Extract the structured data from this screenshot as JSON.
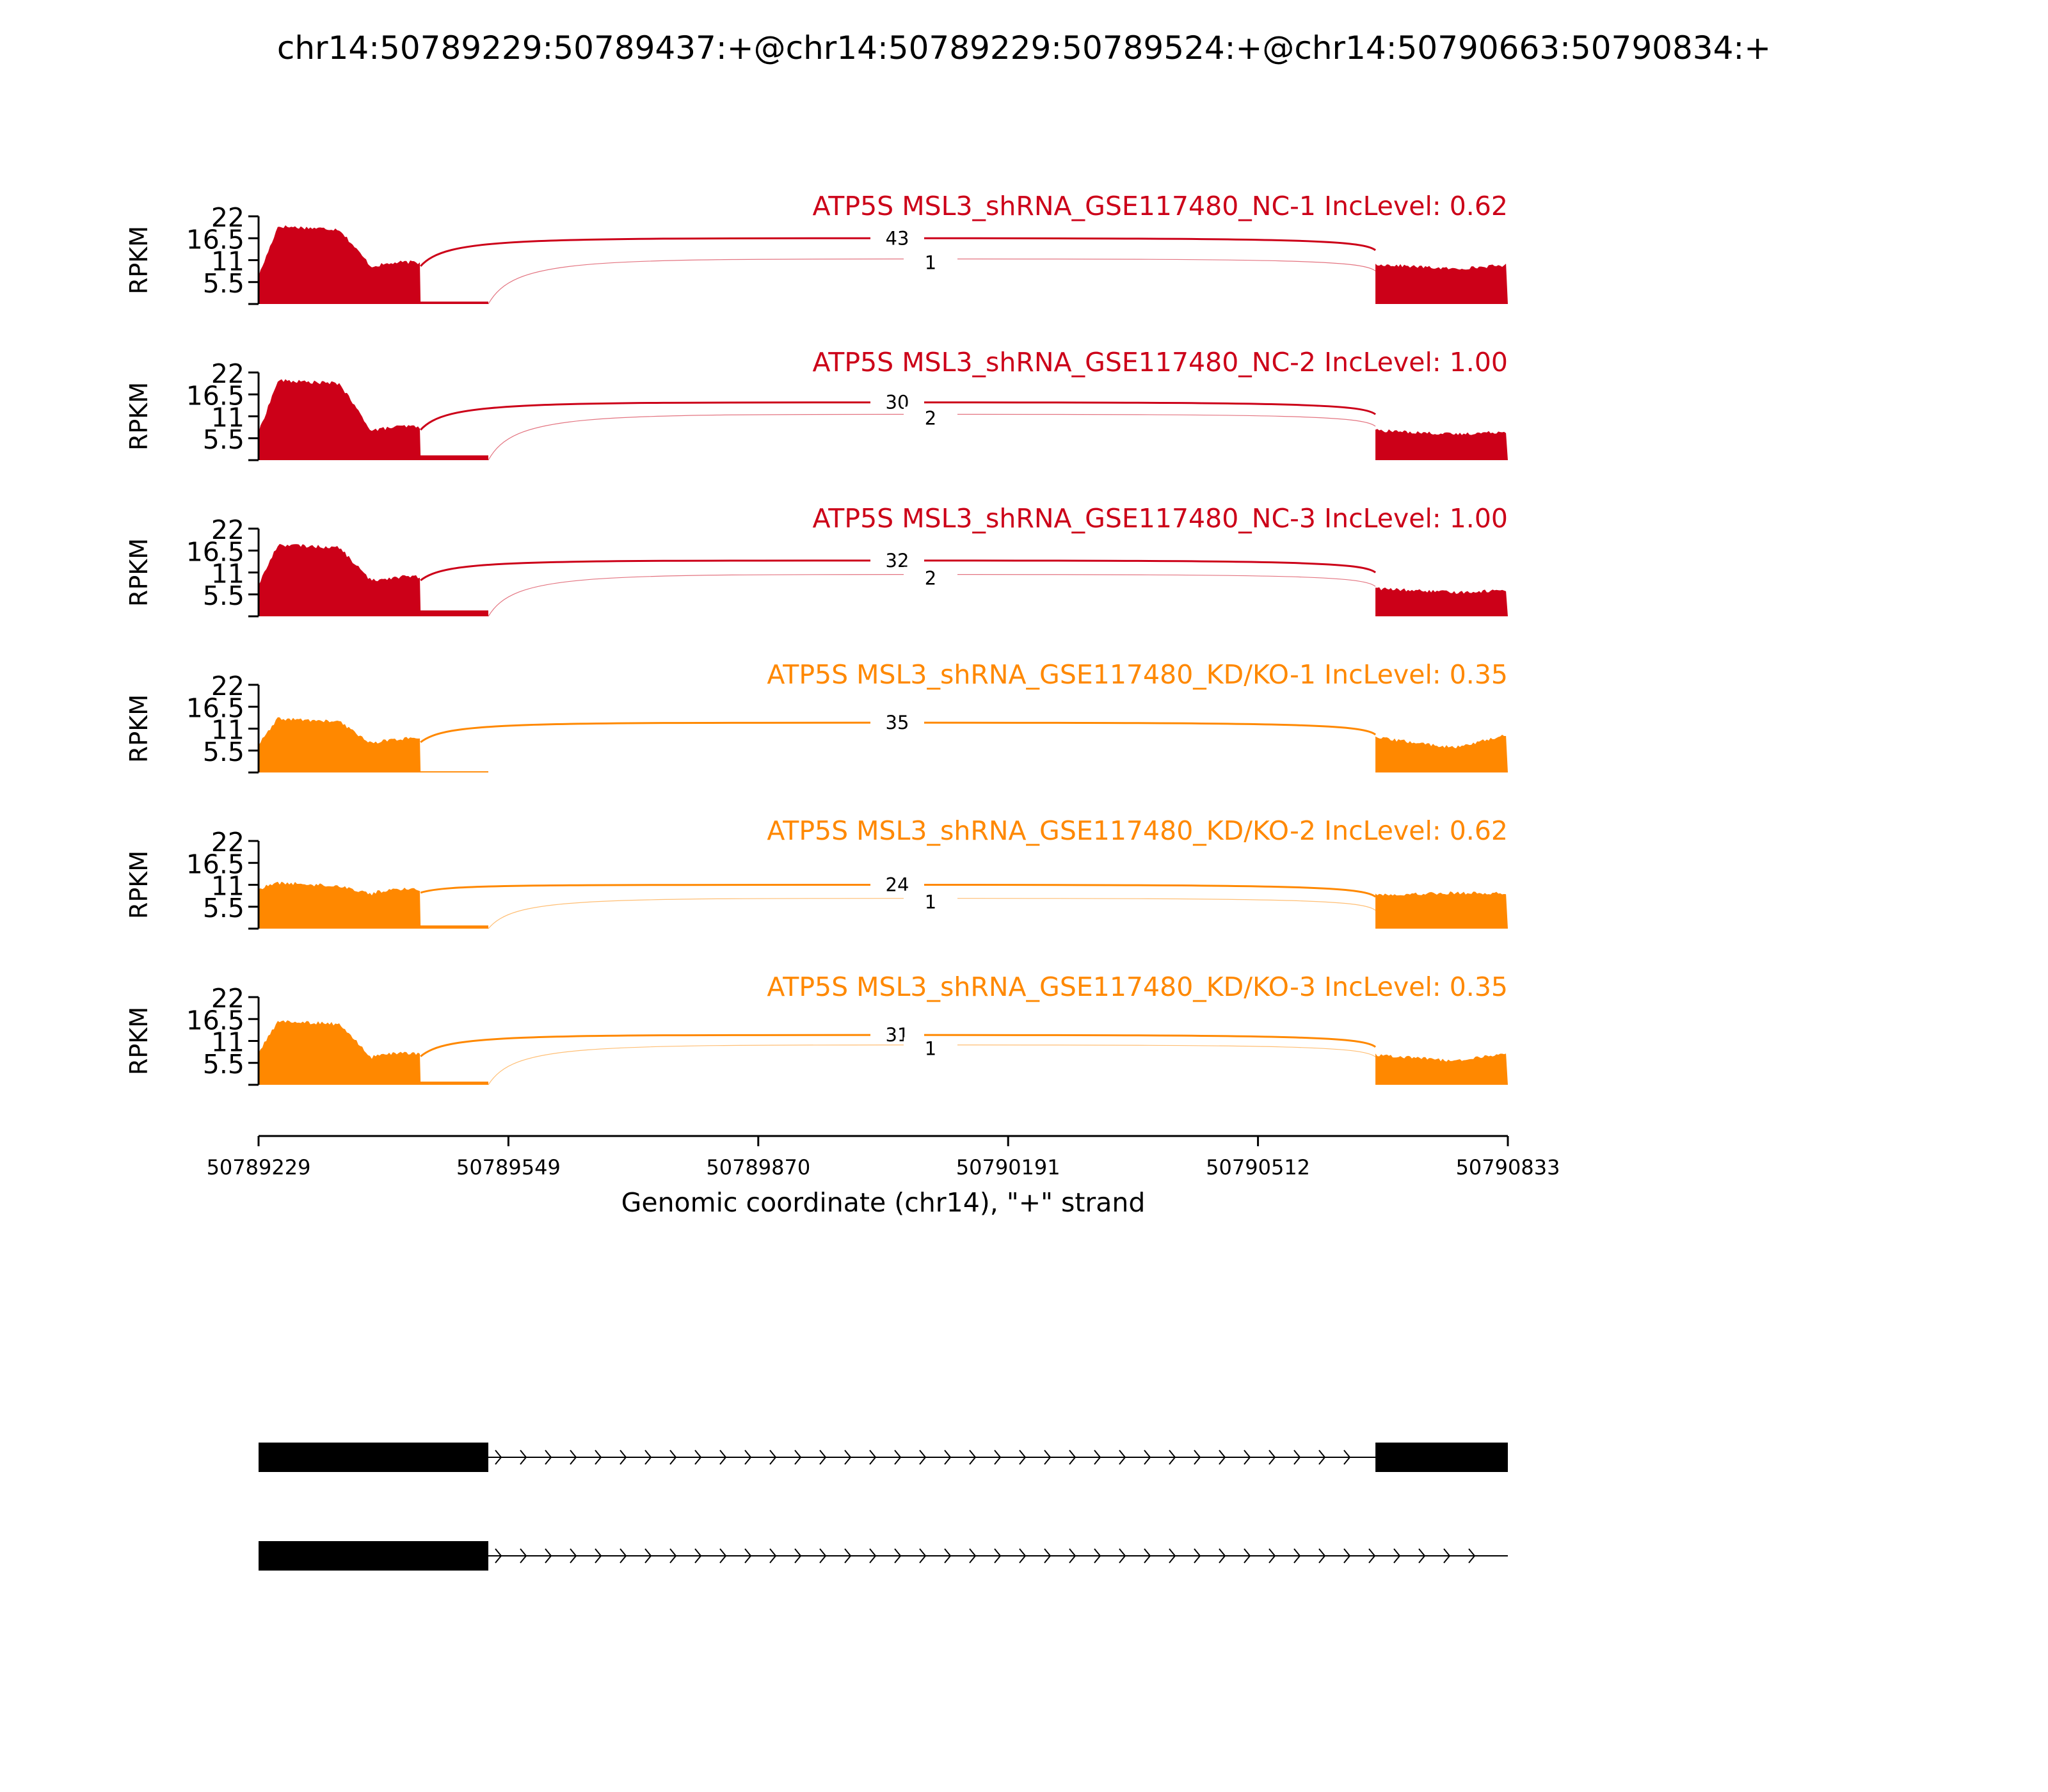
{
  "figure": {
    "title": "chr14:50789229:50789437:+@chr14:50789229:50789524:+@chr14:50790663:50790834:+"
  },
  "chart_data": {
    "type": "area",
    "title": "chr14:50789229:50789437:+@chr14:50789229:50789524:+@chr14:50790663:50790834:+",
    "ylabel": "RPKM",
    "xlabel": "Genomic coordinate (chr14), \"+\" strand",
    "ylim": [
      0,
      22
    ],
    "yticks": [
      "5.5",
      "11",
      "16.5",
      "22"
    ],
    "xlim": [
      50789229,
      50790833
    ],
    "xticks": [
      "50789229",
      "50789549",
      "50789870",
      "50790191",
      "50790512",
      "50790833"
    ],
    "exons": {
      "upstream": [
        50789229,
        50789437
      ],
      "alternative": [
        50789437,
        50789524
      ],
      "downstream": [
        50790663,
        50790833
      ]
    },
    "colors": {
      "NC": "#cc0018",
      "KD/KO": "#ff8800"
    },
    "panels": [
      {
        "title": "ATP5S MSL3_shRNA_GSE117480_NC-1 IncLevel: 0.62",
        "color": "#cc0018",
        "coverage": {
          "exon1_start": 7,
          "exon1_peak": 19.5,
          "exon1_end": 10,
          "alt_exon": 0.6,
          "exon3": [
            10,
            8.8,
            9.8
          ]
        },
        "junctions": [
          {
            "label": "43",
            "from": 50789437,
            "to": 50790663,
            "level": 16.5
          },
          {
            "label": "1",
            "from": 50789524,
            "to": 50790663,
            "level": 11.3
          }
        ]
      },
      {
        "title": "ATP5S MSL3_shRNA_GSE117480_NC-2 IncLevel: 1.00",
        "color": "#cc0018",
        "coverage": {
          "exon1_start": 7,
          "exon1_peak": 20,
          "exon1_end": 8,
          "alt_exon": 1.2,
          "exon3": [
            7.5,
            6.5,
            7.2
          ]
        },
        "junctions": [
          {
            "label": "30",
            "from": 50789437,
            "to": 50790663,
            "level": 14.5
          },
          {
            "label": "2",
            "from": 50789524,
            "to": 50790663,
            "level": 11.5
          }
        ]
      },
      {
        "title": "ATP5S MSL3_shRNA_GSE117480_NC-3 IncLevel: 1.00",
        "color": "#cc0018",
        "coverage": {
          "exon1_start": 8,
          "exon1_peak": 18,
          "exon1_end": 9.5,
          "alt_exon": 1.5,
          "exon3": [
            7,
            6,
            6.6
          ]
        },
        "junctions": [
          {
            "label": "32",
            "from": 50789437,
            "to": 50790663,
            "level": 14
          },
          {
            "label": "2",
            "from": 50789524,
            "to": 50790663,
            "level": 10.5
          }
        ]
      },
      {
        "title": "ATP5S MSL3_shRNA_GSE117480_KD/KO-1 IncLevel: 0.35",
        "color": "#ff8800",
        "coverage": {
          "exon1_start": 7,
          "exon1_peak": 13.5,
          "exon1_end": 8,
          "alt_exon": 0.3,
          "exon3": [
            8.8,
            6.2,
            9.5
          ]
        },
        "junctions": [
          {
            "label": "35",
            "from": 50789437,
            "to": 50790663,
            "level": 12.5
          }
        ]
      },
      {
        "title": "ATP5S MSL3_shRNA_GSE117480_KD/KO-2 IncLevel: 0.62",
        "color": "#ff8800",
        "coverage": {
          "exon1_start": 10,
          "exon1_peak": 11.5,
          "exon1_end": 9.5,
          "alt_exon": 0.8,
          "exon3": [
            8.5,
            9,
            8.8
          ]
        },
        "junctions": [
          {
            "label": "24",
            "from": 50789437,
            "to": 50790663,
            "level": 11
          },
          {
            "label": "1",
            "from": 50789524,
            "to": 50790663,
            "level": 7.6
          }
        ]
      },
      {
        "title": "ATP5S MSL3_shRNA_GSE117480_KD/KO-3 IncLevel: 0.35",
        "color": "#ff8800",
        "coverage": {
          "exon1_start": 8,
          "exon1_peak": 16,
          "exon1_end": 7.5,
          "alt_exon": 0.8,
          "exon3": [
            7.5,
            6,
            8
          ]
        },
        "junctions": [
          {
            "label": "31",
            "from": 50789437,
            "to": 50790663,
            "level": 12.5
          },
          {
            "label": "1",
            "from": 50789524,
            "to": 50790663,
            "level": 10
          }
        ]
      }
    ],
    "isoforms": [
      {
        "exons": [
          [
            50789229,
            50789524
          ],
          [
            50790663,
            50790833
          ]
        ]
      },
      {
        "exons": [
          [
            50789229,
            50789524
          ]
        ]
      }
    ]
  }
}
